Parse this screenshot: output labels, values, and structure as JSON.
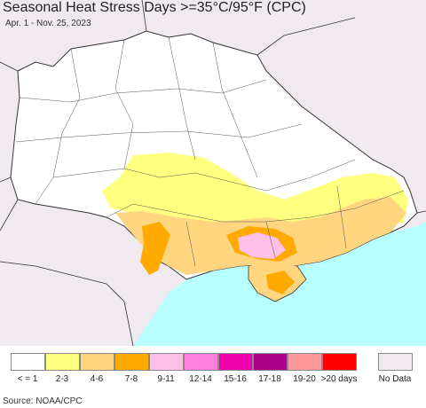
{
  "header": {
    "title": "Seasonal Heat Stress Days >=35°C/95°F (CPC)",
    "date_range": "Apr. 1 - Nov. 25, 2023"
  },
  "legend": [
    {
      "label": "< = 1",
      "color": "#ffffff"
    },
    {
      "label": "2-3",
      "color": "#ffff80"
    },
    {
      "label": "4-6",
      "color": "#ffd580"
    },
    {
      "label": "7-8",
      "color": "#ffaa00"
    },
    {
      "label": "9-11",
      "color": "#ffc0e8"
    },
    {
      "label": "12-14",
      "color": "#ff80e0"
    },
    {
      "label": "15-16",
      "color": "#ee00aa"
    },
    {
      "label": "17-18",
      "color": "#aa0088"
    },
    {
      "label": "19-20",
      "color": "#ff9999"
    },
    {
      "label": ">20 days",
      "color": "#ff0000"
    }
  ],
  "no_data": {
    "label": "No Data",
    "color": "#f0eaf0"
  },
  "source": "Source: NOAA/CPC",
  "colors": {
    "sea": "#b8ffff",
    "outside": "#f0eaf0",
    "land": "#ffffff",
    "border": "#333333"
  }
}
